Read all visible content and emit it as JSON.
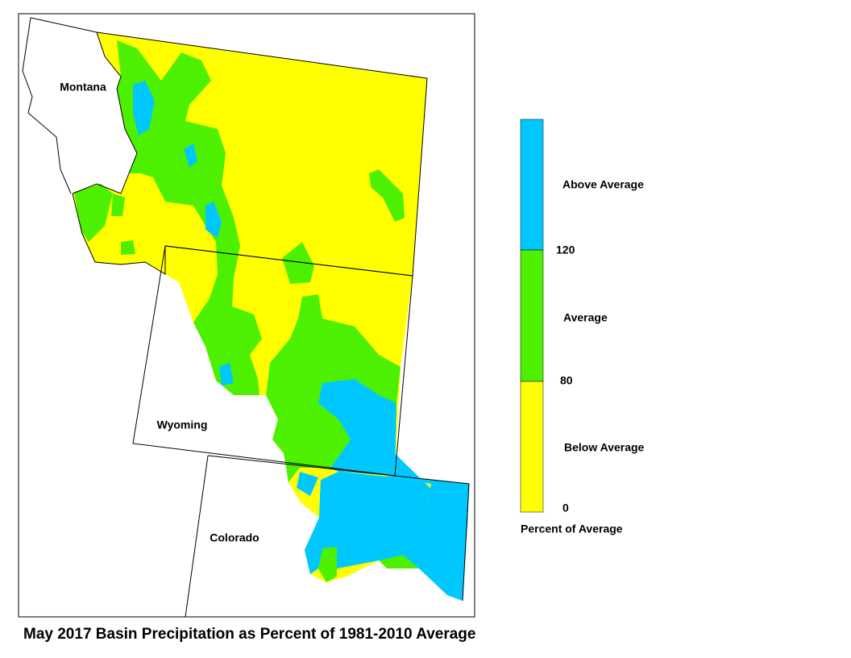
{
  "title": "May 2017 Basin Precipitation as Percent of 1981-2010 Average",
  "map": {
    "labels": [
      "Montana",
      "Wyoming",
      "Colorado"
    ]
  },
  "legend": {
    "title": "Percent of Average",
    "classes": [
      {
        "label": "Above Average",
        "color": "#00c8ff"
      },
      {
        "label": "Average",
        "color": "#4cf000"
      },
      {
        "label": "Below Average",
        "color": "#ffff00"
      }
    ],
    "ticks": [
      120,
      80,
      0
    ]
  }
}
